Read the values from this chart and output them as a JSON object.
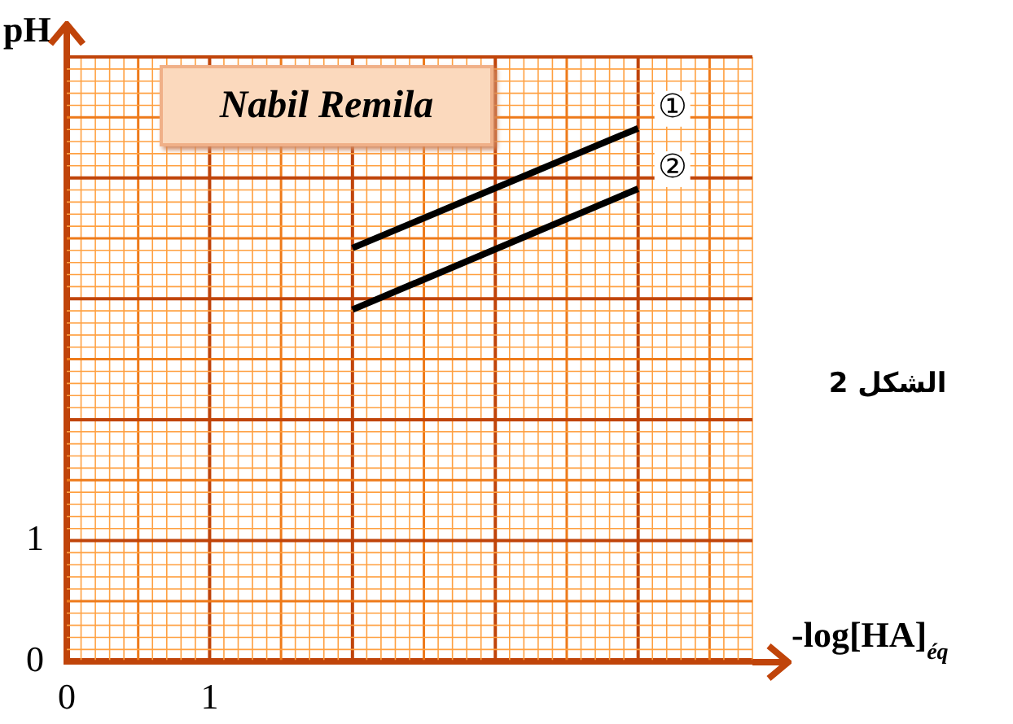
{
  "chart_data": {
    "type": "line",
    "xlabel": "-log[HA]$_{éq}$",
    "ylabel": "pH",
    "annotations": [
      "Nabil Remila",
      "الشكل 2"
    ],
    "series": [
      {
        "name": "①",
        "color": "#000000",
        "values": [
          3.42,
          4.41
        ]
      },
      {
        "name": "②",
        "color": "#000000",
        "values": [
          2.91,
          3.91
        ]
      }
    ],
    "x": [
      2,
      4
    ],
    "xlim": [
      0,
      4.8
    ],
    "ylim": [
      0,
      5
    ],
    "xticks": [
      0,
      {
        "value": 0.1,
        "label": null
      },
      {
        "value": 0.2,
        "label": null
      },
      {
        "value": 0.3,
        "label": null
      },
      {
        "value": 0.4,
        "label": null
      },
      {
        "value": 0.5,
        "label": null
      },
      {
        "value": 0.6,
        "label": null
      },
      {
        "value": 0.7,
        "label": null
      },
      {
        "value": 0.8,
        "label": null
      },
      {
        "value": 0.9,
        "label": null
      },
      1,
      {
        "value": 1.1,
        "label": null
      },
      {
        "value": 1.2,
        "label": null
      },
      {
        "value": 1.3,
        "label": null
      },
      {
        "value": 1.4,
        "label": null
      },
      {
        "value": 1.5,
        "label": null
      },
      {
        "value": 1.6,
        "label": null
      },
      {
        "value": 1.7,
        "label": null
      },
      {
        "value": 1.8,
        "label": null
      },
      {
        "value": 1.9,
        "label": null
      },
      {
        "value": 2,
        "label": null
      },
      {
        "value": 2.1,
        "label": null
      },
      {
        "value": 2.2,
        "label": null
      },
      {
        "value": 2.3,
        "label": null
      },
      {
        "value": 2.4,
        "label": null
      },
      {
        "value": 2.5,
        "label": null
      },
      {
        "value": 2.6,
        "label": null
      },
      {
        "value": 2.7,
        "label": null
      },
      {
        "value": 2.8,
        "label": null
      },
      {
        "value": 2.9,
        "label": null
      },
      {
        "value": 3,
        "label": null
      },
      {
        "value": 3.1,
        "label": null
      },
      {
        "value": 3.2,
        "label": null
      },
      {
        "value": 3.3,
        "label": null
      },
      {
        "value": 3.4,
        "label": null
      },
      {
        "value": 3.5,
        "label": null
      },
      {
        "value": 3.6,
        "label": null
      },
      {
        "value": 3.7,
        "label": null
      },
      {
        "value": 3.8,
        "label": null
      },
      {
        "value": 3.9,
        "label": null
      },
      {
        "value": 4,
        "label": null
      },
      {
        "value": 4.1,
        "label": null
      },
      {
        "value": 4.2,
        "label": null
      },
      {
        "value": 4.3,
        "label": null
      },
      {
        "value": 4.4,
        "label": null
      },
      {
        "value": 4.5,
        "label": null
      },
      {
        "value": 4.6,
        "label": null
      },
      {
        "value": 4.7,
        "label": null
      },
      {
        "value": 4.8,
        "label": null
      }
    ],
    "yticks": [
      0,
      {
        "value": 0.1,
        "label": null
      },
      {
        "value": 0.2,
        "label": null
      },
      {
        "value": 0.3,
        "label": null
      },
      {
        "value": 0.4,
        "label": null
      },
      {
        "value": 0.5,
        "label": null
      },
      {
        "value": 0.6,
        "label": null
      },
      {
        "value": 0.7,
        "label": null
      },
      {
        "value": 0.8,
        "label": null
      },
      {
        "value": 0.9,
        "label": null
      },
      1,
      {
        "value": 1.1,
        "label": null
      },
      {
        "value": 1.2,
        "label": null
      },
      {
        "value": 1.3,
        "label": null
      },
      {
        "value": 1.4,
        "label": null
      },
      {
        "value": 1.5,
        "label": null
      },
      {
        "value": 1.6,
        "label": null
      },
      {
        "value": 1.7,
        "label": null
      },
      {
        "value": 1.8,
        "label": null
      },
      {
        "value": 1.9,
        "label": null
      },
      {
        "value": 2,
        "label": null
      },
      {
        "value": 2.1,
        "label": null
      },
      {
        "value": 2.2,
        "label": null
      },
      {
        "value": 2.3,
        "label": null
      },
      {
        "value": 2.4,
        "label": null
      },
      {
        "value": 2.5,
        "label": null
      },
      {
        "value": 2.6,
        "label": null
      },
      {
        "value": 2.7,
        "label": null
      },
      {
        "value": 2.8,
        "label": null
      },
      {
        "value": 2.9,
        "label": null
      },
      {
        "value": 3,
        "label": null
      },
      {
        "value": 3.1,
        "label": null
      },
      {
        "value": 3.2,
        "label": null
      },
      {
        "value": 3.3,
        "label": null
      },
      {
        "value": 3.4,
        "label": null
      },
      {
        "value": 3.5,
        "label": null
      },
      {
        "value": 3.6,
        "label": null
      },
      {
        "value": 3.7,
        "label": null
      },
      {
        "value": 3.8,
        "label": null
      },
      {
        "value": 3.9,
        "label": null
      },
      {
        "value": 4,
        "label": null
      },
      {
        "value": 4.1,
        "label": null
      },
      {
        "value": 4.2,
        "label": null
      },
      {
        "value": 4.3,
        "label": null
      },
      {
        "value": 4.4,
        "label": null
      },
      {
        "value": 4.5,
        "label": null
      },
      {
        "value": 4.6,
        "label": null
      },
      {
        "value": 4.7,
        "label": null
      },
      {
        "value": 4.8,
        "label": null
      },
      {
        "value": 4.9,
        "label": null
      },
      {
        "value": 5,
        "label": null
      }
    ],
    "grid": true,
    "legend": false,
    "marker": "none",
    "line_style": "solid"
  }
}
